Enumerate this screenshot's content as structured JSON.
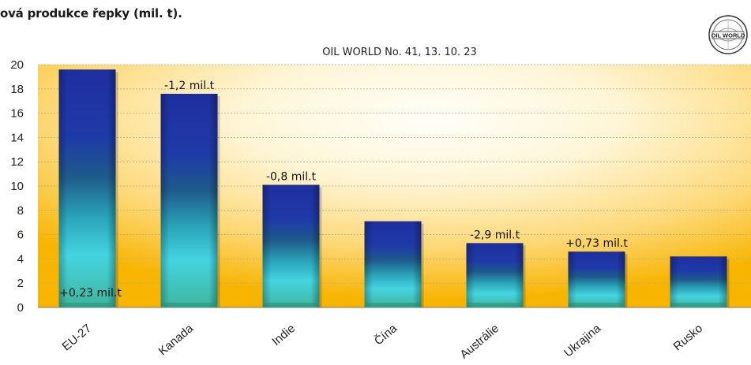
{
  "page": {
    "title": "ová produkce řepky (mil. t)."
  },
  "logo": {
    "name": "oil-world-seal",
    "text_main": "OIL WORLD",
    "text_top": "ISTA Mielke GmbH",
    "text_bottom": "since 1958"
  },
  "chart_data": {
    "type": "bar",
    "subtitle": "OIL WORLD No. 41, 13. 10. 23",
    "categories": [
      "EU-27",
      "Kanada",
      "Indie",
      "Čína",
      "Austrálie",
      "Ukrajina",
      "Rusko"
    ],
    "values": [
      19.6,
      17.6,
      10.1,
      7.1,
      5.3,
      4.6,
      4.2
    ],
    "annotations": [
      "+0,23 mil.t",
      "-1,2 mil.t",
      "-0,8 mil.t",
      "",
      "-2,9 mil.t",
      "+0,73 mil.t",
      ""
    ],
    "ylim": [
      0,
      20
    ],
    "yticks": [
      0,
      2,
      4,
      6,
      8,
      10,
      12,
      14,
      16,
      18,
      20
    ],
    "xlabel": "",
    "ylabel": "",
    "grid": true,
    "colors": {
      "bar_top": "#1f2f9e",
      "bar_mid": "#35c6d6",
      "bar_bottom": "#4fb89a",
      "bg_edge": "#f7b400",
      "bg_center": "#fffdf2"
    }
  }
}
